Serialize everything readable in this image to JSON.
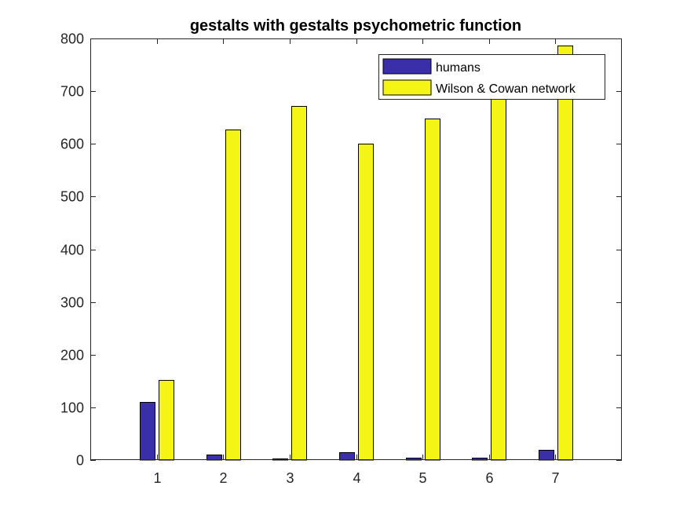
{
  "chart_data": {
    "type": "bar",
    "title": "gestalts with gestalts psychometric function",
    "xlabel": "",
    "ylabel": "",
    "categories": [
      "1",
      "2",
      "3",
      "4",
      "5",
      "6",
      "7"
    ],
    "ylim": [
      0,
      800
    ],
    "yticks": [
      0,
      100,
      200,
      300,
      400,
      500,
      600,
      700,
      800
    ],
    "xlim": [
      0,
      8
    ],
    "series": [
      {
        "name": "humans",
        "color": "#3a2fa8",
        "values": [
          110,
          10,
          3,
          15,
          5,
          5,
          20
        ]
      },
      {
        "name": "Wilson & Cowan network",
        "color": "#f5f515",
        "values": [
          152,
          627,
          672,
          600,
          648,
          692,
          787
        ]
      }
    ],
    "legend": {
      "position": "top-right"
    },
    "grid": false
  }
}
